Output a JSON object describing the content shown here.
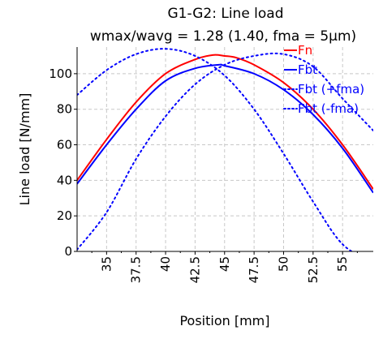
{
  "chart_data": {
    "type": "line",
    "title": "G1-G2: Line load",
    "subtitle": "wmax/wavg = 1.28 (1.40, fma = 5µm)",
    "xlabel": "Position [mm]",
    "ylabel": "Line load [N/mm]",
    "xlim": [
      32.5,
      57.6
    ],
    "ylim": [
      0,
      115
    ],
    "xticks": [
      "35",
      "37.5",
      "40",
      "42.5",
      "45",
      "47.5",
      "50",
      "52.5",
      "55"
    ],
    "yticks": [
      "0",
      "20",
      "40",
      "60",
      "80",
      "100"
    ],
    "grid": true,
    "legend": "top-right",
    "series": [
      {
        "name": "Fn",
        "color": "#ff0000",
        "style": "solid",
        "x": [
          32.5,
          35,
          37.5,
          40,
          42.5,
          44,
          45,
          46,
          47.5,
          50,
          52.5,
          55,
          57.6
        ],
        "y": [
          40,
          63,
          84,
          100,
          108,
          110.5,
          110,
          109,
          105,
          95,
          80,
          60,
          35
        ]
      },
      {
        "name": "Fbt",
        "color": "#0000ff",
        "style": "solid",
        "x": [
          32.5,
          35,
          37.5,
          40,
          42.5,
          44.5,
          45,
          47.5,
          50,
          52.5,
          55,
          57.6
        ],
        "y": [
          38,
          60,
          80,
          96,
          103,
          105,
          104.5,
          100,
          91,
          77,
          58,
          33
        ]
      },
      {
        "name": "Fbt (+fma)",
        "color": "#0000ff",
        "style": "dotted",
        "x": [
          32.5,
          35,
          37.5,
          40,
          42.5,
          45,
          47.5,
          50,
          52.5,
          55,
          57.6
        ],
        "y": [
          1,
          22,
          52,
          76,
          94,
          105,
          110,
          111,
          104,
          86,
          68
        ]
      },
      {
        "name": "Fbt (-fma)",
        "color": "#0000ff",
        "style": "dotted",
        "x": [
          32.5,
          35,
          37.5,
          40,
          42.5,
          45,
          47.5,
          50,
          52.5,
          55,
          57.6
        ],
        "y": [
          88,
          102,
          111,
          114,
          110,
          99,
          80,
          55,
          28,
          4,
          -6
        ]
      }
    ]
  }
}
